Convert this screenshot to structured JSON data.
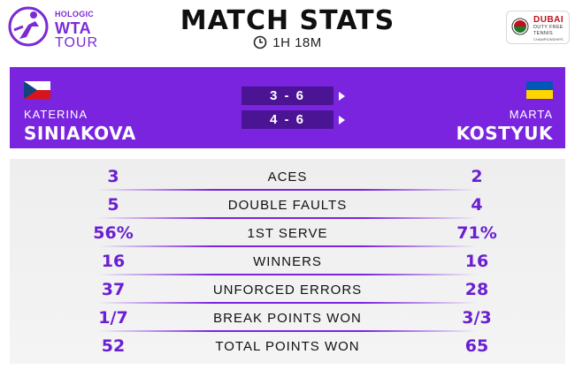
{
  "header": {
    "brand": {
      "line1": "HOLOGIC",
      "line2": "WTA",
      "line3": "TOUR"
    },
    "title": "MATCH STATS",
    "duration": "1H 18M",
    "event_logo": {
      "line1": "DUBAI",
      "line2": "DUTY FREE",
      "line3": "TENNIS",
      "line4": "CHAMPIONSHIPS"
    }
  },
  "players": {
    "left": {
      "first_name": "KATERINA",
      "last_name": "SINIAKOVA",
      "flag": "czech-flag"
    },
    "right": {
      "first_name": "MARTA",
      "last_name": "KOSTYUK",
      "flag": "ukraine-flag"
    }
  },
  "sets": [
    {
      "score": "3 - 6"
    },
    {
      "score": "4 - 6"
    }
  ],
  "colors": {
    "accent": "#7a24e0",
    "set_box": "#4a1495",
    "stat_value": "#6a1fd0"
  },
  "stats": [
    {
      "label": "ACES",
      "left": "3",
      "right": "2"
    },
    {
      "label": "DOUBLE FAULTS",
      "left": "5",
      "right": "4"
    },
    {
      "label": "1ST SERVE",
      "left": "56%",
      "right": "71%"
    },
    {
      "label": "WINNERS",
      "left": "16",
      "right": "16"
    },
    {
      "label": "UNFORCED ERRORS",
      "left": "37",
      "right": "28"
    },
    {
      "label": "BREAK POINTS WON",
      "left": "1/7",
      "right": "3/3"
    },
    {
      "label": "TOTAL POINTS WON",
      "left": "52",
      "right": "65"
    }
  ]
}
